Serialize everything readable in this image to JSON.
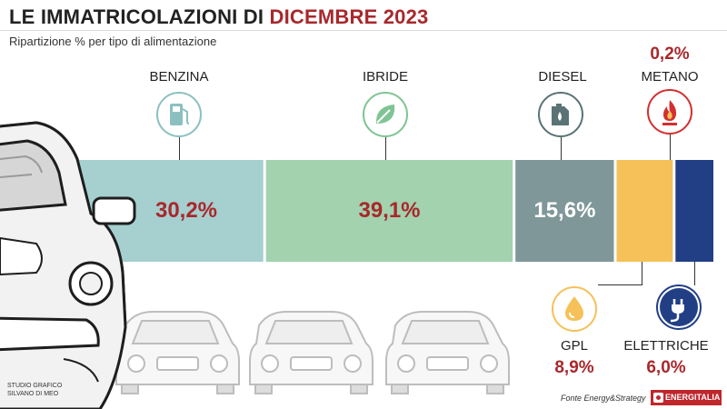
{
  "header": {
    "title_part1": "LE IMMATRICOLAZIONI DI",
    "title_part2": "DICEMBRE 2023",
    "subtitle": "Ripartizione % per tipo di alimentazione"
  },
  "chart_data": {
    "type": "bar",
    "orientation": "horizontal-stacked",
    "categories": [
      "BENZINA",
      "IBRIDE",
      "DIESEL",
      "GPL",
      "ELETTRICHE",
      "METANO"
    ],
    "values": [
      30.2,
      39.1,
      15.6,
      8.9,
      6.0,
      0.2
    ],
    "value_labels": [
      "30,2%",
      "39,1%",
      "15,6%",
      "8,9%",
      "6,0%",
      "0,2%"
    ],
    "unit": "%",
    "colors": [
      "#a6cfcf",
      "#a2d2ae",
      "#7f9799",
      "#f5c158",
      "#223f86",
      "#d32f2f"
    ],
    "label_colors": [
      "#a8282c",
      "#a8282c",
      "#ffffff",
      "#a8282c",
      "#a8282c",
      "#a8282c"
    ],
    "icons": [
      "fuel-pump-icon",
      "leaf-icon",
      "oil-can-icon",
      "gas-drop-icon",
      "electric-plug-icon",
      "flame-icon"
    ]
  },
  "footer": {
    "credit_line1": "STUDIO GRAFICO",
    "credit_line2": "SILVANO DI MEO",
    "source": "Fonte Energy&Strategy",
    "logo_text": "ENERGITALIA"
  }
}
